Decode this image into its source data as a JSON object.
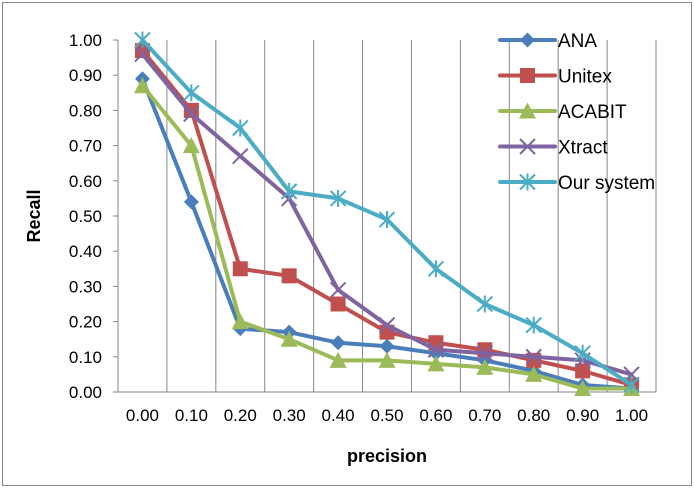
{
  "chart_data": {
    "type": "line",
    "title": "",
    "xlabel": "precision",
    "ylabel": "Recall",
    "x": [
      "0.00",
      "0.10",
      "0.20",
      "0.30",
      "0.40",
      "0.50",
      "0.60",
      "0.70",
      "0.80",
      "0.90",
      "1.00"
    ],
    "y_ticks": [
      "0.00",
      "0.10",
      "0.20",
      "0.30",
      "0.40",
      "0.50",
      "0.60",
      "0.70",
      "0.80",
      "0.90",
      "1.00"
    ],
    "ylim": [
      0,
      1
    ],
    "grid": "vertical",
    "legend_position": "top-right",
    "series": [
      {
        "name": "ANA",
        "color": "#4a7ebb",
        "marker": "diamond",
        "values": [
          0.89,
          0.54,
          0.18,
          0.17,
          0.14,
          0.13,
          0.11,
          0.09,
          0.06,
          0.02,
          0.01
        ]
      },
      {
        "name": "Unitex",
        "color": "#c0504d",
        "marker": "square",
        "values": [
          0.97,
          0.8,
          0.35,
          0.33,
          0.25,
          0.17,
          0.14,
          0.12,
          0.09,
          0.06,
          0.02
        ]
      },
      {
        "name": "ACABIT",
        "color": "#9bbb59",
        "marker": "triangle",
        "values": [
          0.87,
          0.7,
          0.2,
          0.15,
          0.09,
          0.09,
          0.08,
          0.07,
          0.05,
          0.01,
          0.01
        ]
      },
      {
        "name": "Xtract",
        "color": "#8064a2",
        "marker": "x",
        "values": [
          0.96,
          0.79,
          0.67,
          0.55,
          0.29,
          0.19,
          0.12,
          0.11,
          0.1,
          0.09,
          0.05
        ]
      },
      {
        "name": "Our system",
        "color": "#4bacc6",
        "marker": "star",
        "values": [
          1.0,
          0.85,
          0.75,
          0.57,
          0.55,
          0.49,
          0.35,
          0.25,
          0.19,
          0.11,
          0.02
        ]
      }
    ]
  }
}
